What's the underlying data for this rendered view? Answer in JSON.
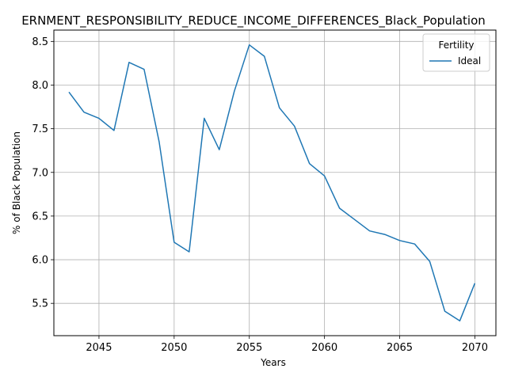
{
  "chart_data": {
    "type": "line",
    "title": "ERNMENT_RESPONSIBILITY_REDUCE_INCOME_DIFFERENCES_Black_Population",
    "xlabel": "Years",
    "ylabel": "% of Black Population",
    "xlim": [
      2042,
      2071.4
    ],
    "ylim": [
      5.13,
      8.63
    ],
    "xticks": [
      2045,
      2050,
      2055,
      2060,
      2065,
      2070
    ],
    "yticks": [
      5.5,
      6.0,
      6.5,
      7.0,
      7.5,
      8.0,
      8.5
    ],
    "ytick_labels": [
      "5.5",
      "6.0",
      "6.5",
      "7.0",
      "7.5",
      "8.0",
      "8.5"
    ],
    "grid": true,
    "legend": {
      "title": "Fertility",
      "placement": "top-right"
    },
    "series": [
      {
        "name": "Ideal",
        "color": "#1f77b4",
        "x": [
          2043,
          2044,
          2045,
          2046,
          2047,
          2048,
          2049,
          2050,
          2051,
          2052,
          2053,
          2054,
          2055,
          2056,
          2057,
          2058,
          2059,
          2060,
          2061,
          2062,
          2063,
          2064,
          2065,
          2066,
          2067,
          2068,
          2069,
          2070
        ],
        "y": [
          7.92,
          7.69,
          7.62,
          7.48,
          8.26,
          8.18,
          7.35,
          6.2,
          6.09,
          7.62,
          7.26,
          7.93,
          8.46,
          8.33,
          7.74,
          7.53,
          7.1,
          6.96,
          6.59,
          6.46,
          6.33,
          6.29,
          6.22,
          6.18,
          5.98,
          5.41,
          5.3,
          5.73
        ]
      }
    ]
  }
}
